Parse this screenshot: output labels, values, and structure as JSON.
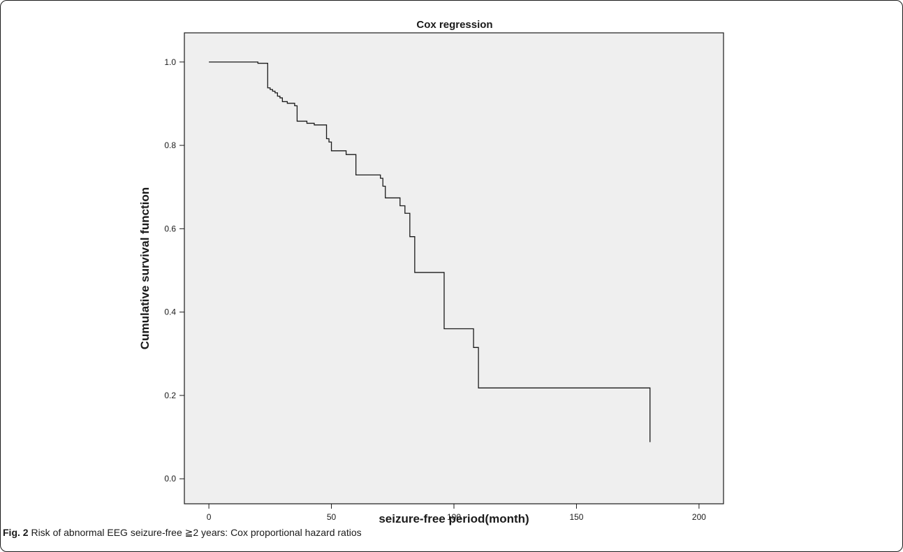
{
  "chart_data": {
    "type": "line",
    "style": "step",
    "title": "Cox regression",
    "xlabel": "seizure-free period(month)",
    "ylabel": "Cumulative survival function",
    "xlim": [
      -10,
      210
    ],
    "ylim": [
      -0.06,
      1.07
    ],
    "xticks": [
      0,
      50,
      100,
      150,
      200
    ],
    "xtick_labels": [
      "0",
      "50",
      "100",
      "150",
      "200"
    ],
    "yticks": [
      0.0,
      0.2,
      0.4,
      0.6,
      0.8,
      1.0
    ],
    "ytick_labels": [
      "0.0",
      "0.2",
      "0.4",
      "0.6",
      "0.8",
      "1.0"
    ],
    "grid": false,
    "plot_background": "#efefef",
    "line_color": "#1a1a1a",
    "series": [
      {
        "x": [
          0,
          20,
          20,
          24,
          24,
          25,
          25,
          26,
          26,
          27,
          27,
          28,
          28,
          29,
          29,
          30,
          30,
          32,
          32,
          35,
          35,
          36,
          36,
          40,
          40,
          43,
          43,
          48,
          48,
          49,
          49,
          50,
          50,
          56,
          56,
          60,
          60,
          70,
          70,
          71,
          71,
          72,
          72,
          78,
          78,
          80,
          80,
          82,
          82,
          84,
          84,
          96,
          96,
          108,
          108,
          110,
          110,
          132,
          132,
          180,
          180
        ],
        "y": [
          1.0,
          1.0,
          0.997,
          0.997,
          0.938,
          0.938,
          0.934,
          0.934,
          0.93,
          0.93,
          0.926,
          0.926,
          0.918,
          0.918,
          0.914,
          0.914,
          0.905,
          0.905,
          0.901,
          0.901,
          0.895,
          0.895,
          0.858,
          0.858,
          0.853,
          0.853,
          0.849,
          0.849,
          0.816,
          0.816,
          0.808,
          0.808,
          0.787,
          0.787,
          0.778,
          0.778,
          0.729,
          0.729,
          0.721,
          0.721,
          0.702,
          0.702,
          0.674,
          0.674,
          0.655,
          0.655,
          0.637,
          0.637,
          0.581,
          0.581,
          0.495,
          0.495,
          0.36,
          0.36,
          0.315,
          0.315,
          0.218,
          0.218,
          0.218,
          0.218,
          0.088
        ]
      }
    ]
  },
  "caption": {
    "label": "Fig. 2",
    "text": " Risk of abnormal EEG seizure-free ≧2 years: Cox proportional hazard ratios"
  }
}
